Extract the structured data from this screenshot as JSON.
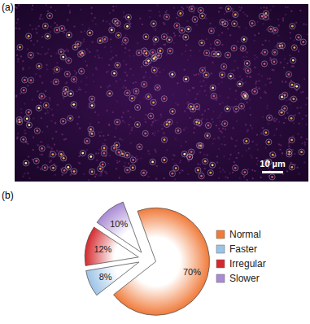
{
  "figure": {
    "panel_a_label": "(a)",
    "scale_bar_label": "10 µm"
  },
  "chart_data": {
    "type": "pie",
    "title": "(b)",
    "categories": [
      "Normal",
      "Faster",
      "Irregular",
      "Slower"
    ],
    "values": [
      70,
      8,
      12,
      10
    ],
    "value_labels": [
      "70%",
      "8%",
      "12%",
      "10%"
    ],
    "colors": [
      "#f07a3a",
      "#9dc3e6",
      "#d42a2e",
      "#a98ad4"
    ],
    "data_labels": true,
    "legend": "right"
  }
}
